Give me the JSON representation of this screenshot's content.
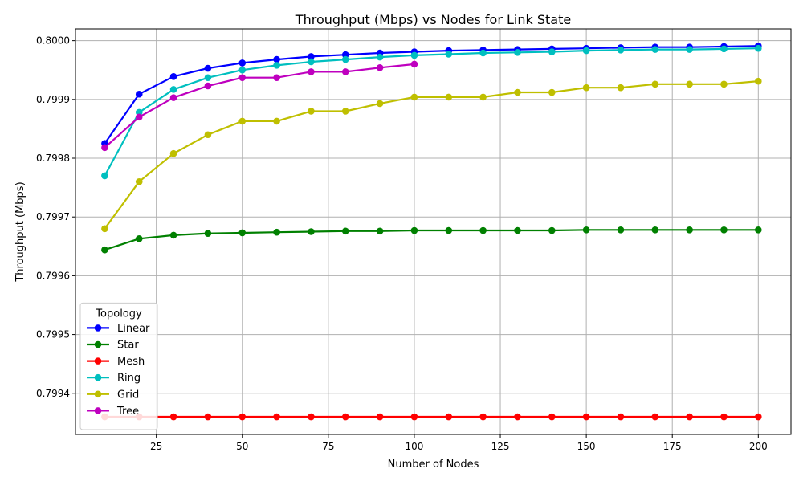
{
  "chart_data": {
    "type": "line",
    "title": "Throughput (Mbps) vs Nodes for Link State",
    "xlabel": "Number of Nodes",
    "ylabel": "Throughput (Mbps)",
    "xlim": [
      1.5,
      209.5
    ],
    "ylim": [
      0.79933,
      0.80002
    ],
    "x_ticks": [
      25,
      50,
      75,
      100,
      125,
      150,
      175,
      200
    ],
    "x_tick_labels": [
      "25",
      "50",
      "75",
      "100",
      "125",
      "150",
      "175",
      "200"
    ],
    "y_ticks": [
      0.7994,
      0.7995,
      0.7996,
      0.7997,
      0.7998,
      0.7999,
      0.8
    ],
    "y_tick_labels": [
      "0.7994",
      "0.7995",
      "0.7996",
      "0.7997",
      "0.7998",
      "0.7999",
      "0.8000"
    ],
    "grid": true,
    "legend": {
      "title": "Topology",
      "placement": "lower-left"
    },
    "x": [
      10,
      20,
      30,
      40,
      50,
      60,
      70,
      80,
      90,
      100,
      110,
      120,
      130,
      140,
      150,
      160,
      170,
      180,
      190,
      200
    ],
    "series": [
      {
        "name": "Linear",
        "color": "#0000ff",
        "values": [
          0.799825,
          0.799909,
          0.799939,
          0.799953,
          0.799962,
          0.799968,
          0.799973,
          0.799976,
          0.799979,
          0.799981,
          0.799983,
          0.799984,
          0.799985,
          0.799986,
          0.799987,
          0.799988,
          0.799989,
          0.799989,
          0.79999,
          0.799991
        ]
      },
      {
        "name": "Star",
        "color": "#008000",
        "values": [
          0.799644,
          0.799663,
          0.799669,
          0.799672,
          0.799673,
          0.799674,
          0.799675,
          0.799676,
          0.799676,
          0.799677,
          0.799677,
          0.799677,
          0.799677,
          0.799677,
          0.799678,
          0.799678,
          0.799678,
          0.799678,
          0.799678,
          0.799678
        ]
      },
      {
        "name": "Mesh",
        "color": "#ff0000",
        "values": [
          0.79936,
          0.79936,
          0.79936,
          0.79936,
          0.79936,
          0.79936,
          0.79936,
          0.79936,
          0.79936,
          0.79936,
          0.79936,
          0.79936,
          0.79936,
          0.79936,
          0.79936,
          0.79936,
          0.79936,
          0.79936,
          0.79936,
          0.79936
        ]
      },
      {
        "name": "Ring",
        "color": "#00bfbf",
        "values": [
          0.79977,
          0.799878,
          0.799917,
          0.799937,
          0.79995,
          0.799958,
          0.799964,
          0.799968,
          0.799972,
          0.799975,
          0.799977,
          0.799979,
          0.79998,
          0.799981,
          0.799983,
          0.799984,
          0.799985,
          0.799985,
          0.799986,
          0.799987
        ]
      },
      {
        "name": "Grid",
        "color": "#bfbf00",
        "values": [
          0.79968,
          0.79976,
          0.799808,
          0.79984,
          0.799863,
          0.799863,
          0.79988,
          0.79988,
          0.799893,
          0.799904,
          0.799904,
          0.799904,
          0.799912,
          0.799912,
          0.79992,
          0.79992,
          0.799926,
          0.799926,
          0.799926,
          0.799931
        ]
      },
      {
        "name": "Tree",
        "color": "#bf00bf",
        "values": [
          0.799818,
          0.79987,
          0.799903,
          0.799923,
          0.799937,
          0.799937,
          0.799947,
          0.799947,
          0.799954,
          0.79996,
          null,
          null,
          null,
          null,
          null,
          null,
          null,
          null,
          null,
          null
        ]
      }
    ]
  }
}
